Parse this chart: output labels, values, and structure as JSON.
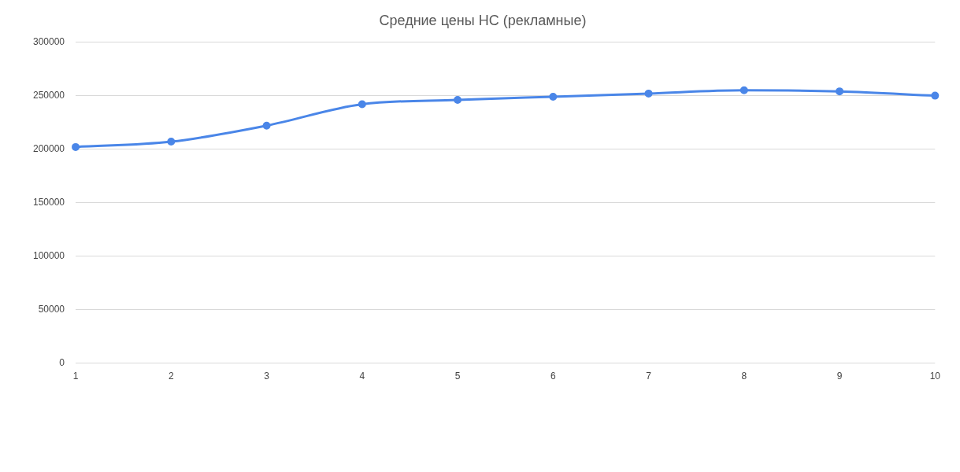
{
  "chart_data": {
    "type": "line",
    "title": "Средние цены НС (рекламные)",
    "categories": [
      "1",
      "2",
      "3",
      "4",
      "5",
      "6",
      "7",
      "8",
      "9",
      "10"
    ],
    "series": [
      {
        "color": "#4a86e8",
        "values": [
          202000,
          207000,
          222000,
          242000,
          246000,
          249000,
          252000,
          255000,
          254000,
          250000
        ]
      }
    ],
    "ylim": [
      0,
      300000
    ],
    "yticks": [
      0,
      50000,
      100000,
      150000,
      200000,
      250000,
      300000
    ],
    "grid": "y",
    "legend": false,
    "marker": "circle",
    "line_style": "solid"
  }
}
